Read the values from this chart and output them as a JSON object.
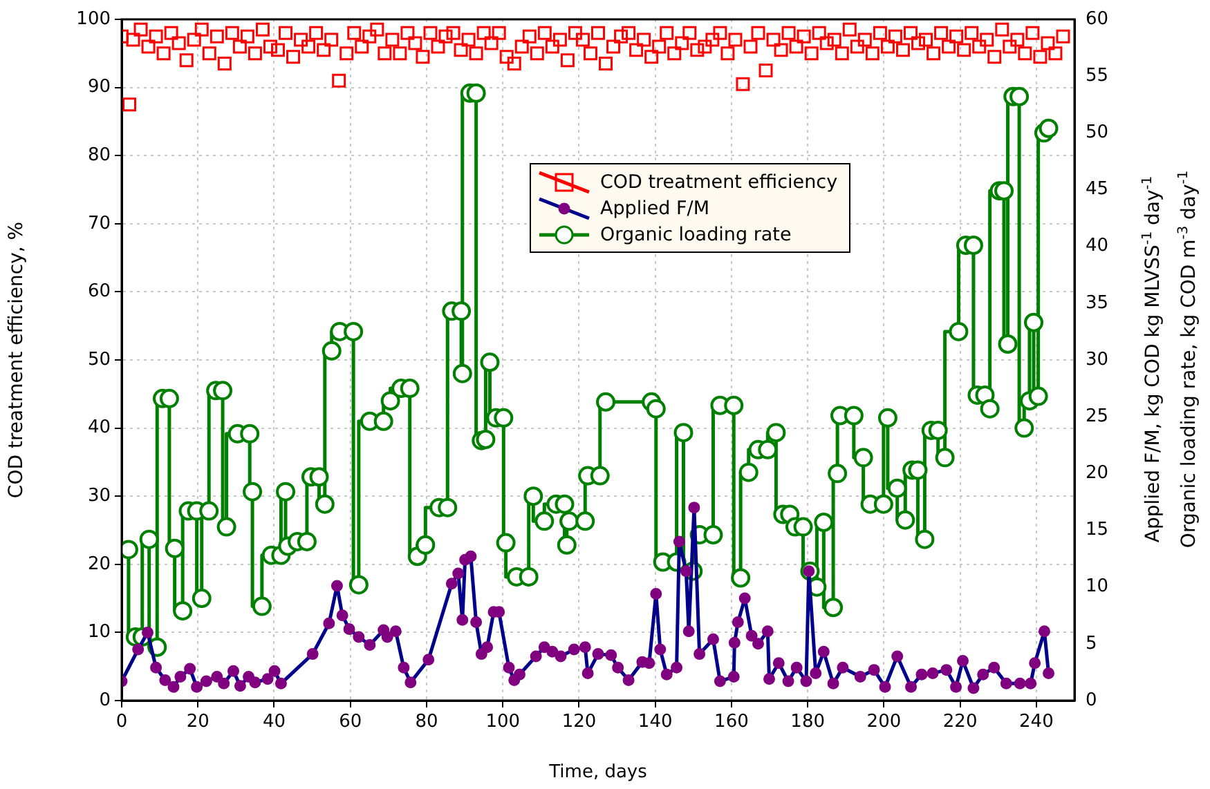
{
  "chart_data": {
    "type": "line",
    "xlabel": "Time, days",
    "ylabel": "COD treatment efficiency, %",
    "y2label": "Applied F/M, kg COD kg MLVSS$^{-1}$ day$^{-1}$\nOrganic loading rate, kg COD m$^{-3}$ day$^{-1}$",
    "xlim": [
      0,
      250
    ],
    "xticks": [
      0,
      20,
      40,
      60,
      80,
      100,
      120,
      140,
      160,
      180,
      200,
      220,
      240
    ],
    "ylim": [
      0,
      100
    ],
    "yticks": [
      0,
      10,
      20,
      30,
      40,
      50,
      60,
      70,
      80,
      90,
      100
    ],
    "y2lim": [
      0,
      60
    ],
    "y2ticks": [
      0,
      5,
      10,
      15,
      20,
      25,
      30,
      35,
      40,
      45,
      50,
      55,
      60
    ],
    "grid": true,
    "legend": "top",
    "series": [
      {
        "name": "COD treatment efficiency",
        "type": "scatter",
        "marker": "square",
        "color": "#ff0000",
        "x": [
          0,
          2,
          3,
          5,
          7,
          9,
          11,
          13,
          15,
          17,
          19,
          21,
          23,
          25,
          27,
          29,
          31,
          33,
          35,
          37,
          39,
          41,
          43,
          45,
          47,
          49,
          51,
          53,
          55,
          57,
          59,
          61,
          63,
          65,
          67,
          69,
          71,
          73,
          75,
          77,
          79,
          81,
          83,
          85,
          87,
          89,
          91,
          93,
          95,
          97,
          99,
          101,
          103,
          105,
          107,
          109,
          111,
          113,
          115,
          117,
          119,
          121,
          123,
          125,
          127,
          129,
          131,
          133,
          135,
          137,
          139,
          141,
          143,
          145,
          147,
          149,
          151,
          153,
          155,
          157,
          159,
          161,
          163,
          165,
          167,
          169,
          171,
          173,
          175,
          177,
          179,
          181,
          183,
          185,
          187,
          189,
          191,
          193,
          195,
          197,
          199,
          201,
          203,
          205,
          207,
          209,
          211,
          213,
          215,
          217,
          219,
          221,
          223,
          225,
          227,
          229,
          231,
          233,
          235,
          237,
          239,
          241,
          243,
          245,
          247
        ],
        "values": [
          97.5,
          87.5,
          97,
          98.5,
          96,
          97.5,
          95,
          98,
          96.5,
          94,
          97,
          98.5,
          95,
          97.5,
          93.5,
          98,
          96,
          97.5,
          95,
          98.5,
          96,
          95.5,
          98,
          94.5,
          97,
          96,
          98,
          95.5,
          97,
          91,
          95,
          98,
          96,
          97.5,
          98.5,
          95,
          97,
          95,
          98,
          96.5,
          94.5,
          98,
          96,
          97.5,
          98,
          95.5,
          97,
          95,
          98,
          96.5,
          98,
          94.5,
          93.5,
          96,
          97.5,
          95,
          98,
          96,
          97,
          94,
          98,
          97,
          95,
          98,
          93.5,
          96,
          97.5,
          98,
          95.5,
          97,
          94.5,
          96,
          98,
          95,
          96.5,
          98,
          95.5,
          96,
          97,
          98,
          95,
          97,
          90.5,
          96,
          98,
          92.5,
          97,
          95.5,
          98,
          96,
          97.5,
          95,
          98,
          96.5,
          97,
          95,
          98.5,
          96,
          97,
          95,
          98,
          96,
          97.5,
          95.5,
          98,
          96.5,
          97,
          95,
          98,
          96,
          97.5,
          95.5,
          98,
          96,
          97,
          94.5,
          98.5,
          96,
          97,
          95,
          98,
          94.5,
          96.5,
          95,
          97.5
        ]
      },
      {
        "name": "Applied F/M",
        "axis": "y2",
        "marker": "circle",
        "color": "#00008b",
        "x": [
          0,
          4.3,
          6.8,
          9,
          11.4,
          13.6,
          15.4,
          17.9,
          19.7,
          22.2,
          25,
          26.8,
          29.3,
          31.1,
          33.3,
          35,
          38.3,
          40.1,
          41.8,
          50.1,
          54.4,
          56.5,
          57.9,
          59.7,
          62.2,
          65.1,
          68.7,
          69.7,
          71.9,
          74,
          75.8,
          80.5,
          86.6,
          88.3,
          89.4,
          90.1,
          91.6,
          93,
          94.4,
          95.9,
          97.6,
          99,
          101.6,
          103,
          104.4,
          108.7,
          110.9,
          113,
          115.2,
          118.7,
          121.6,
          122.3,
          125,
          128.4,
          130.2,
          133,
          136.6,
          138.4,
          140.2,
          141.3,
          143,
          145.6,
          146.3,
          148.1,
          148.8,
          150.2,
          151.6,
          155.2,
          157,
          160.6,
          160.8,
          161.7,
          163.5,
          165.3,
          167,
          169.5,
          169.9,
          172.4,
          174.9,
          177.1,
          179.6,
          180.3,
          182.1,
          184.2,
          186.7,
          189.2,
          193.8,
          197.4,
          200.3,
          203.5,
          207.1,
          209.9,
          212.8,
          216.4,
          218.9,
          220.7,
          223.5,
          226,
          228.9,
          232.1,
          235.7,
          238.5,
          239.6,
          242.1,
          243.2
        ],
        "values": [
          1.7,
          4.5,
          6.0,
          2.9,
          1.8,
          1.2,
          2.1,
          2.8,
          1.2,
          1.7,
          2.1,
          1.5,
          2.6,
          1.3,
          2.1,
          1.6,
          1.9,
          2.6,
          1.5,
          4.1,
          6.8,
          10.1,
          7.5,
          6.3,
          5.6,
          4.9,
          6.2,
          5.6,
          6.1,
          2.9,
          1.6,
          3.6,
          10.3,
          11.2,
          7.1,
          12.4,
          12.7,
          6.9,
          4.1,
          4.7,
          7.8,
          7.8,
          2.9,
          1.8,
          2.3,
          3.9,
          4.7,
          4.3,
          3.9,
          4.5,
          4.7,
          2.4,
          4.1,
          4.0,
          2.9,
          1.8,
          3.4,
          3.3,
          9.4,
          4.5,
          2.3,
          2.9,
          14.0,
          11.4,
          6.1,
          17.0,
          4.1,
          5.4,
          1.7,
          2.1,
          5.1,
          6.9,
          9.0,
          5.7,
          5.0,
          6.1,
          1.9,
          3.3,
          1.7,
          2.9,
          1.7,
          11.4,
          2.4,
          4.3,
          1.5,
          2.9,
          2.1,
          2.7,
          1.2,
          3.9,
          1.2,
          2.3,
          2.4,
          2.7,
          1.2,
          3.5,
          1.1,
          2.3,
          2.9,
          1.5,
          1.5,
          1.5,
          3.3,
          6.1,
          2.4
        ]
      },
      {
        "name": "Organic loading rate",
        "type": "step",
        "axis": "y2",
        "marker": "circle",
        "color": "#008000",
        "x": [
          1.8,
          3.6,
          5.4,
          7.2,
          9.3,
          10.7,
          12.5,
          13.9,
          16,
          17.5,
          19.7,
          21,
          22.9,
          24.7,
          26.5,
          27.5,
          30.4,
          33.6,
          34.3,
          36.8,
          39.3,
          41.8,
          43,
          43.6,
          46.1,
          48.6,
          49.7,
          51.8,
          53.3,
          55.1,
          57.2,
          60.8,
          62.2,
          65.1,
          68.7,
          70.5,
          73.3,
          75.6,
          77.6,
          79.7,
          83.3,
          85.5,
          86.6,
          89.1,
          89.4,
          91.4,
          93,
          94.4,
          95.5,
          96.6,
          98.2,
          100.2,
          100.8,
          103.6,
          106.8,
          108,
          110.9,
          114,
          116.2,
          116.8,
          117.4,
          121.6,
          122.3,
          125.5,
          127,
          139,
          140.2,
          142,
          145.6,
          147.4,
          149.9,
          151.6,
          155.2,
          157,
          160.6,
          162.4,
          164.5,
          167,
          169.5,
          171.7,
          173.5,
          175.3,
          176.7,
          178.8,
          180.6,
          182.4,
          184.2,
          186.7,
          187.8,
          188.5,
          192.1,
          194.6,
          196.4,
          199.9,
          201,
          203.5,
          205.6,
          207.4,
          208.9,
          210.7,
          212.4,
          214.2,
          216,
          219.6,
          221.5,
          223.5,
          224.5,
          226.5,
          227.8,
          230.3,
          231.5,
          232.5,
          233.9,
          235.5,
          236.8,
          238.2,
          239.3,
          240.5,
          242,
          243.2
        ],
        "values": [
          13.3,
          5.6,
          5.6,
          14.2,
          4.7,
          26.6,
          26.6,
          13.4,
          7.9,
          16.7,
          16.7,
          9.0,
          16.7,
          27.3,
          27.3,
          15.3,
          23.5,
          23.5,
          18.4,
          8.3,
          12.8,
          12.8,
          18.4,
          13.6,
          14.0,
          14.0,
          19.7,
          19.7,
          17.3,
          30.8,
          32.5,
          32.5,
          10.2,
          24.6,
          24.6,
          26.4,
          27.5,
          27.5,
          12.7,
          13.7,
          17.0,
          17.0,
          34.3,
          34.3,
          28.8,
          53.5,
          53.5,
          22.9,
          23.0,
          29.8,
          24.9,
          24.9,
          13.9,
          10.9,
          10.9,
          18.0,
          15.8,
          17.3,
          17.3,
          13.7,
          15.8,
          15.8,
          19.8,
          19.8,
          26.3,
          26.3,
          25.7,
          12.2,
          12.2,
          23.6,
          11.4,
          14.6,
          14.6,
          26.0,
          26.0,
          10.8,
          20.1,
          22.1,
          22.1,
          23.6,
          16.4,
          16.4,
          15.3,
          15.3,
          11.4,
          10.0,
          15.7,
          8.2,
          20.0,
          25.1,
          25.1,
          21.4,
          17.3,
          17.3,
          24.9,
          18.7,
          15.9,
          20.3,
          20.3,
          14.2,
          23.8,
          23.8,
          21.4,
          32.5,
          40.1,
          40.1,
          26.9,
          26.9,
          25.7,
          44.9,
          44.9,
          31.4,
          53.2,
          53.2,
          24.0,
          26.4,
          33.3,
          26.8,
          50.0,
          50.4
        ]
      }
    ]
  }
}
